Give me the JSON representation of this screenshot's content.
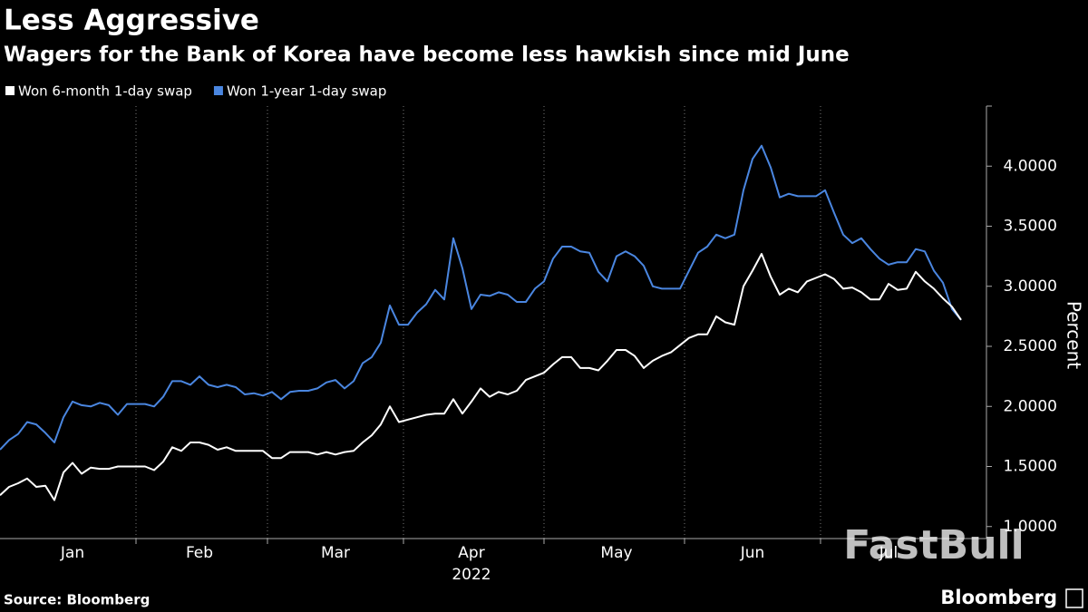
{
  "chart_data": {
    "type": "line",
    "title": "Less Aggressive",
    "subtitle": "Wagers for the Bank of Korea have become less hawkish since mid June",
    "ylabel": "Percent",
    "xlabel": "2022",
    "source": "Source: Bloomberg",
    "brand": "Bloomberg",
    "watermark": "FastBull",
    "categories": [
      null,
      null,
      null,
      null,
      null,
      null,
      null,
      null,
      "Jan",
      null,
      null,
      null,
      null,
      null,
      null,
      null,
      null,
      null,
      null,
      null,
      null,
      null,
      "Feb",
      null,
      null,
      null,
      null,
      null,
      null,
      null,
      null,
      null,
      null,
      null,
      null,
      null,
      null,
      "Mar",
      null,
      null,
      null,
      null,
      null,
      null,
      null,
      null,
      null,
      null,
      null,
      null,
      null,
      null,
      "Apr",
      null,
      null,
      null,
      null,
      null,
      null,
      null,
      null,
      null,
      null,
      null,
      null,
      null,
      null,
      null,
      "May",
      null,
      null,
      null,
      null,
      null,
      null,
      null,
      null,
      null,
      null,
      null,
      null,
      null,
      null,
      "Jun",
      null,
      null,
      null,
      null,
      null,
      null,
      null,
      null,
      null,
      null,
      null,
      null,
      null,
      null,
      "Jul",
      null,
      null,
      null,
      null,
      null,
      null,
      null,
      null
    ],
    "series": [
      {
        "name": "Won 6-month 1-day swap",
        "color": "#ffffff",
        "values": [
          1.26,
          1.33,
          1.36,
          1.4,
          1.33,
          1.34,
          1.22,
          1.45,
          1.53,
          1.44,
          1.49,
          1.48,
          1.48,
          1.5,
          1.5,
          1.5,
          1.5,
          1.47,
          1.54,
          1.66,
          1.63,
          1.7,
          1.7,
          1.68,
          1.64,
          1.66,
          1.63,
          1.63,
          1.63,
          1.63,
          1.57,
          1.57,
          1.62,
          1.62,
          1.62,
          1.6,
          1.62,
          1.6,
          1.62,
          1.63,
          1.7,
          1.76,
          1.85,
          2.0,
          1.87,
          1.89,
          1.91,
          1.93,
          1.94,
          1.94,
          2.06,
          1.94,
          2.04,
          2.15,
          2.08,
          2.12,
          2.1,
          2.13,
          2.22,
          2.25,
          2.28,
          2.35,
          2.41,
          2.41,
          2.32,
          2.32,
          2.3,
          2.38,
          2.47,
          2.47,
          2.42,
          2.32,
          2.38,
          2.42,
          2.45,
          2.51,
          2.57,
          2.6,
          2.6,
          2.75,
          2.7,
          2.68,
          3.0,
          3.13,
          3.27,
          3.08,
          2.93,
          2.98,
          2.95,
          3.04,
          3.07,
          3.1,
          3.06,
          2.98,
          2.99,
          2.95,
          2.89,
          2.89,
          3.02,
          2.97,
          2.98,
          3.12,
          3.04,
          2.98,
          2.9,
          2.83,
          2.72
        ]
      },
      {
        "name": "Won 1-year 1-day swap",
        "color": "#4a86e0",
        "values": [
          1.64,
          1.72,
          1.77,
          1.87,
          1.85,
          1.78,
          1.7,
          1.91,
          2.04,
          2.01,
          2.0,
          2.03,
          2.01,
          1.93,
          2.02,
          2.02,
          2.02,
          2.0,
          2.08,
          2.21,
          2.21,
          2.18,
          2.25,
          2.18,
          2.16,
          2.18,
          2.16,
          2.1,
          2.11,
          2.09,
          2.12,
          2.06,
          2.12,
          2.13,
          2.13,
          2.15,
          2.2,
          2.22,
          2.15,
          2.21,
          2.36,
          2.41,
          2.53,
          2.84,
          2.68,
          2.68,
          2.78,
          2.85,
          2.97,
          2.89,
          3.4,
          3.15,
          2.81,
          2.93,
          2.92,
          2.95,
          2.93,
          2.87,
          2.87,
          2.98,
          3.04,
          3.23,
          3.33,
          3.33,
          3.29,
          3.28,
          3.12,
          3.04,
          3.25,
          3.29,
          3.25,
          3.17,
          3.0,
          2.98,
          2.98,
          2.98,
          3.13,
          3.28,
          3.33,
          3.43,
          3.4,
          3.43,
          3.8,
          4.06,
          4.17,
          3.99,
          3.74,
          3.77,
          3.75,
          3.75,
          3.75,
          3.8,
          3.61,
          3.43,
          3.36,
          3.4,
          3.31,
          3.23,
          3.18,
          3.2,
          3.2,
          3.31,
          3.29,
          3.13,
          3.03,
          2.81,
          2.72
        ]
      }
    ],
    "ylim": [
      0.9,
      4.5
    ],
    "yticks": [
      {
        "value": 1,
        "label": "1.0000"
      },
      {
        "value": 1.5,
        "label": "1.5000"
      },
      {
        "value": 2,
        "label": "2.0000"
      },
      {
        "value": 2.5,
        "label": "2.5000"
      },
      {
        "value": 3,
        "label": "3.0000"
      },
      {
        "value": 3.5,
        "label": "3.5000"
      },
      {
        "value": 4,
        "label": "4.0000"
      }
    ],
    "y_axis_side": "right",
    "legend": "top-left"
  }
}
